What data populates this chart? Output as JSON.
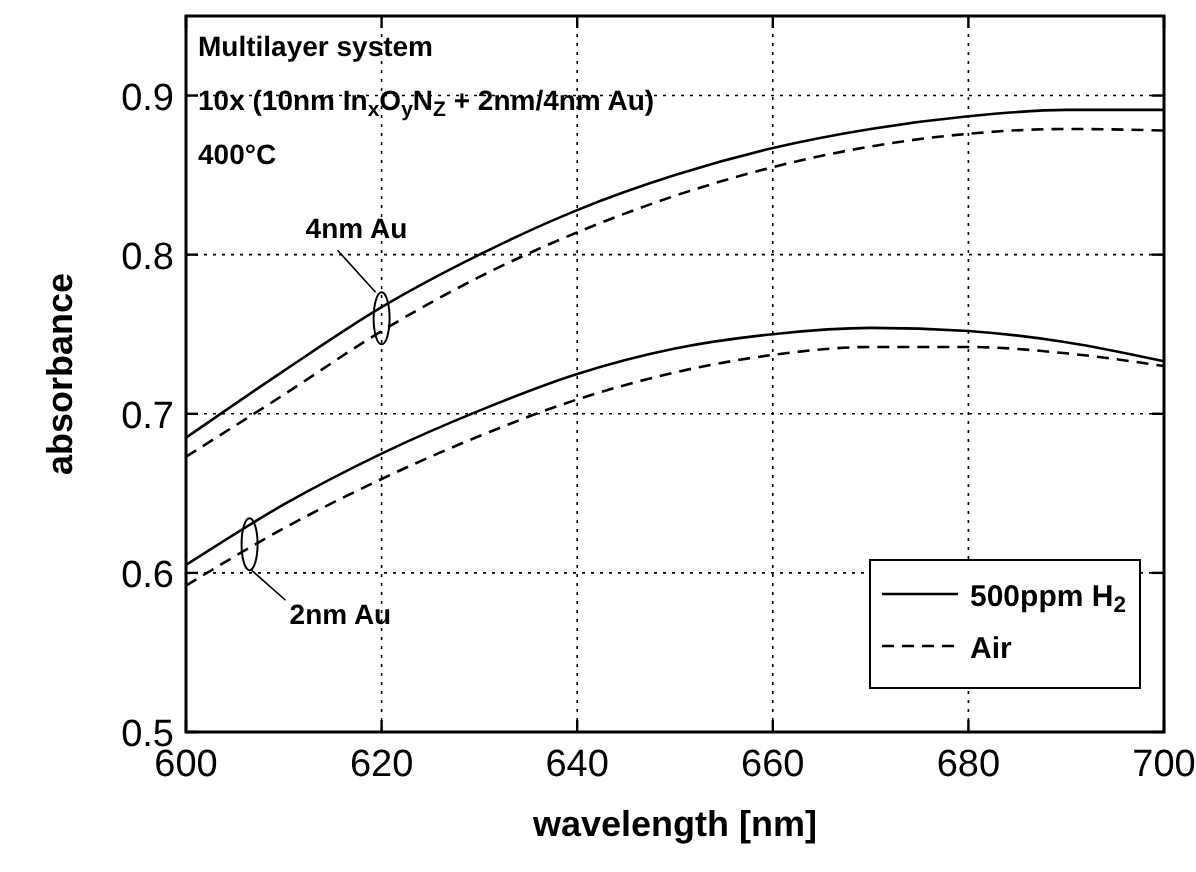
{
  "chart_data": {
    "type": "line",
    "xlabel": "wavelength [nm]",
    "ylabel": "absorbance",
    "x": [
      600,
      610,
      620,
      630,
      640,
      650,
      660,
      670,
      680,
      690,
      700
    ],
    "series": [
      {
        "name": "500ppm H$_{2}$",
        "color": "#000000",
        "line_style": "solid",
        "values": [
          0.685,
          0.727,
          0.767,
          0.8,
          0.828,
          0.85,
          0.867,
          0.879,
          0.887,
          0.891,
          0.891
        ]
      },
      {
        "name": "Air",
        "color": "#000000",
        "line_style": "dashed",
        "values": [
          0.673,
          0.712,
          0.752,
          0.786,
          0.814,
          0.837,
          0.855,
          0.868,
          0.876,
          0.879,
          0.878
        ]
      },
      {
        "color": "#000000",
        "line_style": "solid",
        "values": [
          0.605,
          0.643,
          0.675,
          0.702,
          0.725,
          0.741,
          0.75,
          0.754,
          0.752,
          0.745,
          0.733
        ]
      },
      {
        "color": "#000000",
        "line_style": "dashed",
        "values": [
          0.592,
          0.628,
          0.659,
          0.686,
          0.709,
          0.726,
          0.737,
          0.742,
          0.742,
          0.738,
          0.73
        ]
      }
    ],
    "xlim": [
      600,
      700
    ],
    "xticks": [
      600,
      620,
      640,
      660,
      680,
      700
    ],
    "ylim": [
      0.5,
      0.95
    ],
    "yticks": [
      0.5,
      0.6,
      0.7,
      0.8,
      0.9
    ],
    "grid": true,
    "legend": "bottom right",
    "annotations": [
      "Multilayer system",
      "10x (10nm In$_{x}$O$_{y}$N$_{Z}$ + 2nm/4nm Au)",
      "400°C",
      {
        "text": "4nm Au",
        "x": 620,
        "y": 0.76
      },
      {
        "text": "2nm Au",
        "x": 606.5,
        "y": 0.618
      }
    ]
  }
}
